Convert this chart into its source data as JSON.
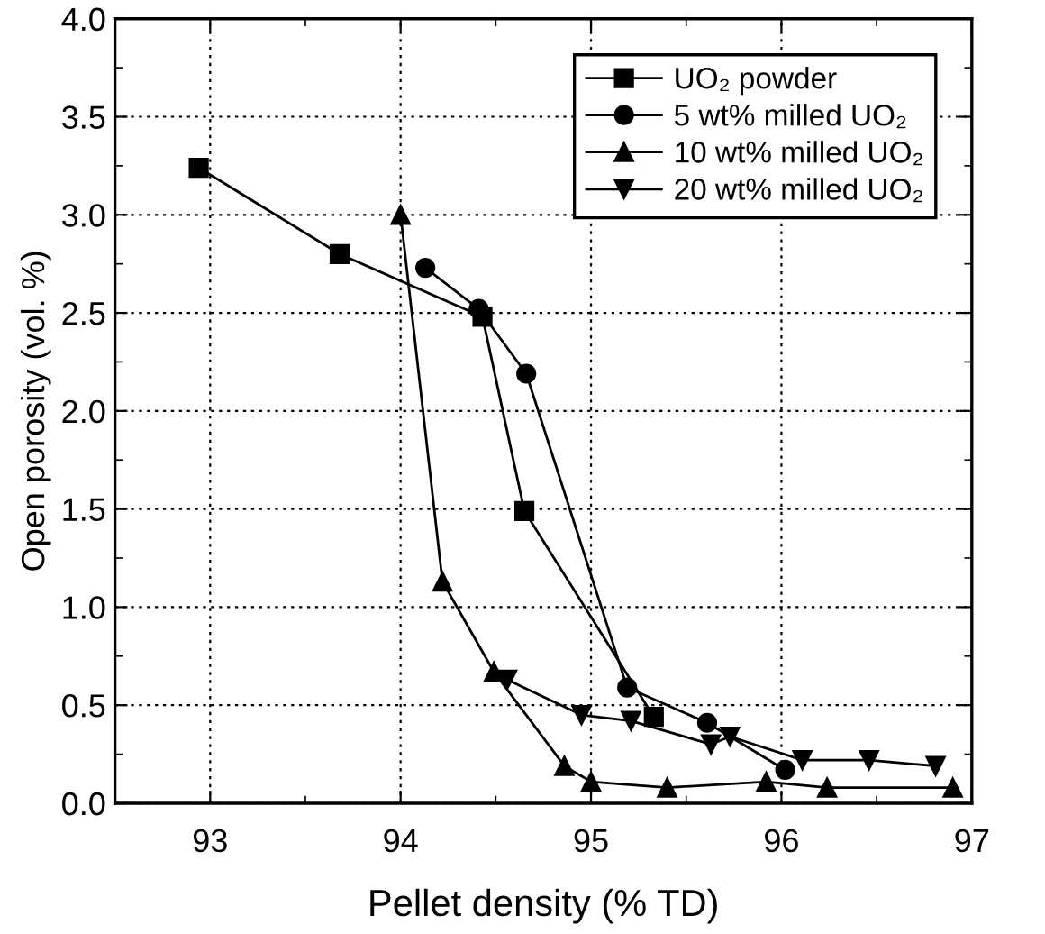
{
  "chart_data": {
    "type": "line",
    "xlabel": "Pellet density (% TD)",
    "ylabel": "Open porosity (vol. %)",
    "xlim": [
      92.5,
      97
    ],
    "ylim": [
      0,
      4.0
    ],
    "xticks": [
      {
        "value": 93,
        "label": "93"
      },
      {
        "value": 93.5,
        "label": null
      },
      {
        "value": 94,
        "label": "94"
      },
      {
        "value": 94.5,
        "label": null
      },
      {
        "value": 95,
        "label": "95"
      },
      {
        "value": 95.5,
        "label": null
      },
      {
        "value": 96,
        "label": "96"
      },
      {
        "value": 96.5,
        "label": null
      },
      {
        "value": 97,
        "label": "97"
      }
    ],
    "yticks": [
      {
        "value": 0,
        "label": "0.0"
      },
      {
        "value": 0.25,
        "label": null
      },
      {
        "value": 0.5,
        "label": "0.5"
      },
      {
        "value": 0.75,
        "label": null
      },
      {
        "value": 1,
        "label": "1.0"
      },
      {
        "value": 1.25,
        "label": null
      },
      {
        "value": 1.5,
        "label": "1.5"
      },
      {
        "value": 1.75,
        "label": null
      },
      {
        "value": 2,
        "label": "2.0"
      },
      {
        "value": 2.25,
        "label": null
      },
      {
        "value": 2.5,
        "label": "2.5"
      },
      {
        "value": 2.75,
        "label": null
      },
      {
        "value": 3,
        "label": "3.0"
      },
      {
        "value": 3.25,
        "label": null
      },
      {
        "value": 3.5,
        "label": "3.5"
      },
      {
        "value": 3.75,
        "label": null
      },
      {
        "value": 4,
        "label": "4.0"
      }
    ],
    "grid": true,
    "legend": "top right",
    "line_style": "solid",
    "series": [
      {
        "name": "UO₂ powder",
        "color": "#000000",
        "marker": "square",
        "x": [
          92.94,
          93.68,
          94.43,
          94.65,
          95.33
        ],
        "values": [
          3.24,
          2.8,
          2.48,
          1.49,
          0.44
        ]
      },
      {
        "name": "5 wt% milled UO₂",
        "color": "#000000",
        "marker": "circle",
        "x": [
          94.13,
          94.41,
          94.66,
          95.19,
          95.61,
          96.02
        ],
        "values": [
          2.73,
          2.52,
          2.19,
          0.59,
          0.41,
          0.17
        ]
      },
      {
        "name": "10 wt% milled UO₂",
        "color": "#000000",
        "marker": "triangle",
        "x": [
          94.0,
          94.22,
          94.49,
          94.86,
          95.0,
          95.4,
          95.92,
          96.24,
          96.9
        ],
        "values": [
          3.0,
          1.13,
          0.67,
          0.19,
          0.11,
          0.08,
          0.11,
          0.08,
          0.08
        ]
      },
      {
        "name": "20 wt% milled UO₂",
        "color": "#000000",
        "marker": "triangle_down",
        "x": [
          94.56,
          94.95,
          95.21,
          95.63,
          95.73,
          96.11,
          96.46,
          96.81
        ],
        "values": [
          0.63,
          0.45,
          0.42,
          0.3,
          0.34,
          0.22,
          0.22,
          0.19
        ]
      }
    ]
  }
}
